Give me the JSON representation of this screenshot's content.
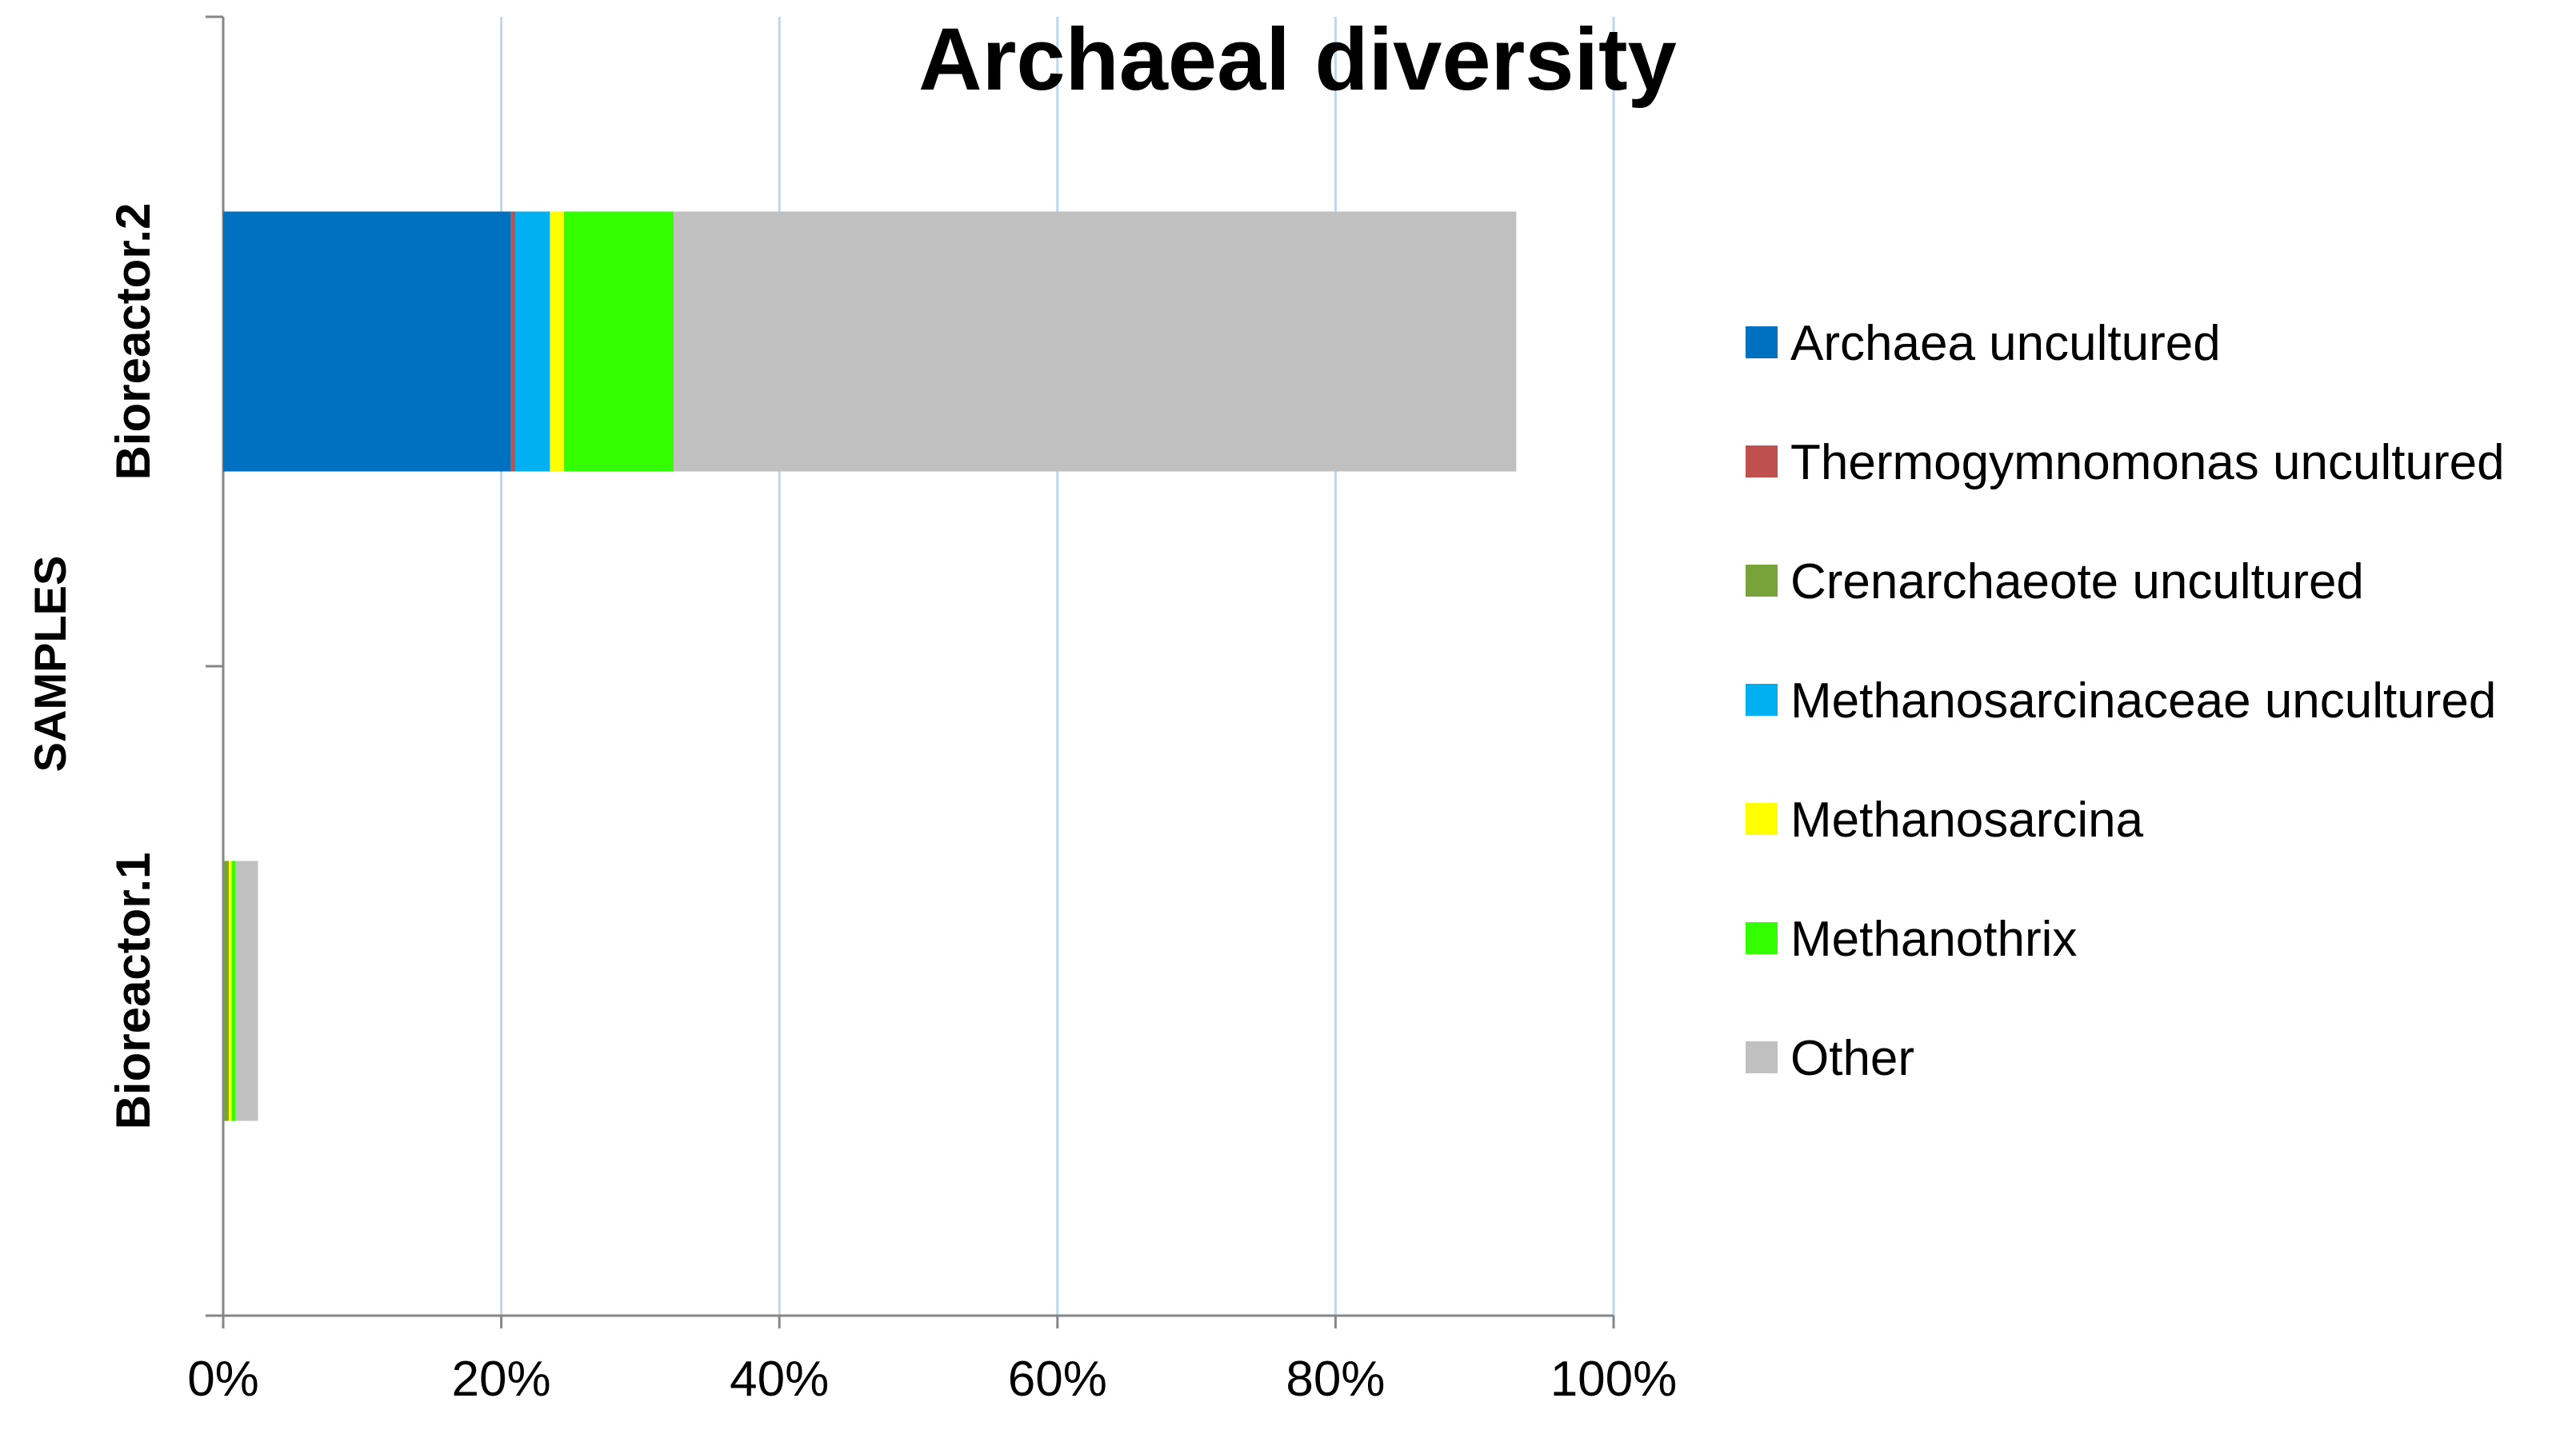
{
  "chart_data": {
    "type": "bar",
    "orientation": "horizontal",
    "stacked": true,
    "title": "Archaeal diversity",
    "xlabel": "",
    "ylabel": "SAMPLES",
    "xlim": [
      0,
      100
    ],
    "x_ticks": [
      "0%",
      "20%",
      "40%",
      "60%",
      "80%",
      "100%"
    ],
    "categories": [
      "Bioreactor.2",
      "Bioreactor.1"
    ],
    "grid": {
      "vertical": true,
      "horizontal": false
    },
    "legend_position": "right",
    "series": [
      {
        "name": "Archaea uncultured",
        "color": "#0070C0",
        "values": [
          20.7,
          0.0
        ]
      },
      {
        "name": "Thermogymnomonas uncultured",
        "color": "#C0504D",
        "values": [
          0.3,
          0.0
        ]
      },
      {
        "name": "Crenarchaeote uncultured",
        "color": "#77A33A",
        "values": [
          0.0,
          0.4
        ]
      },
      {
        "name": "Methanosarcinaceae uncultured",
        "color": "#00B0F0",
        "values": [
          2.5,
          0.0
        ]
      },
      {
        "name": "Methanosarcina",
        "color": "#FFFF00",
        "values": [
          1.0,
          0.2
        ]
      },
      {
        "name": "Methanothrix",
        "color": "#33FF00",
        "values": [
          7.9,
          0.3
        ]
      },
      {
        "name": "Other",
        "color": "#C0C0C0",
        "values": [
          60.6,
          1.6
        ]
      }
    ]
  }
}
